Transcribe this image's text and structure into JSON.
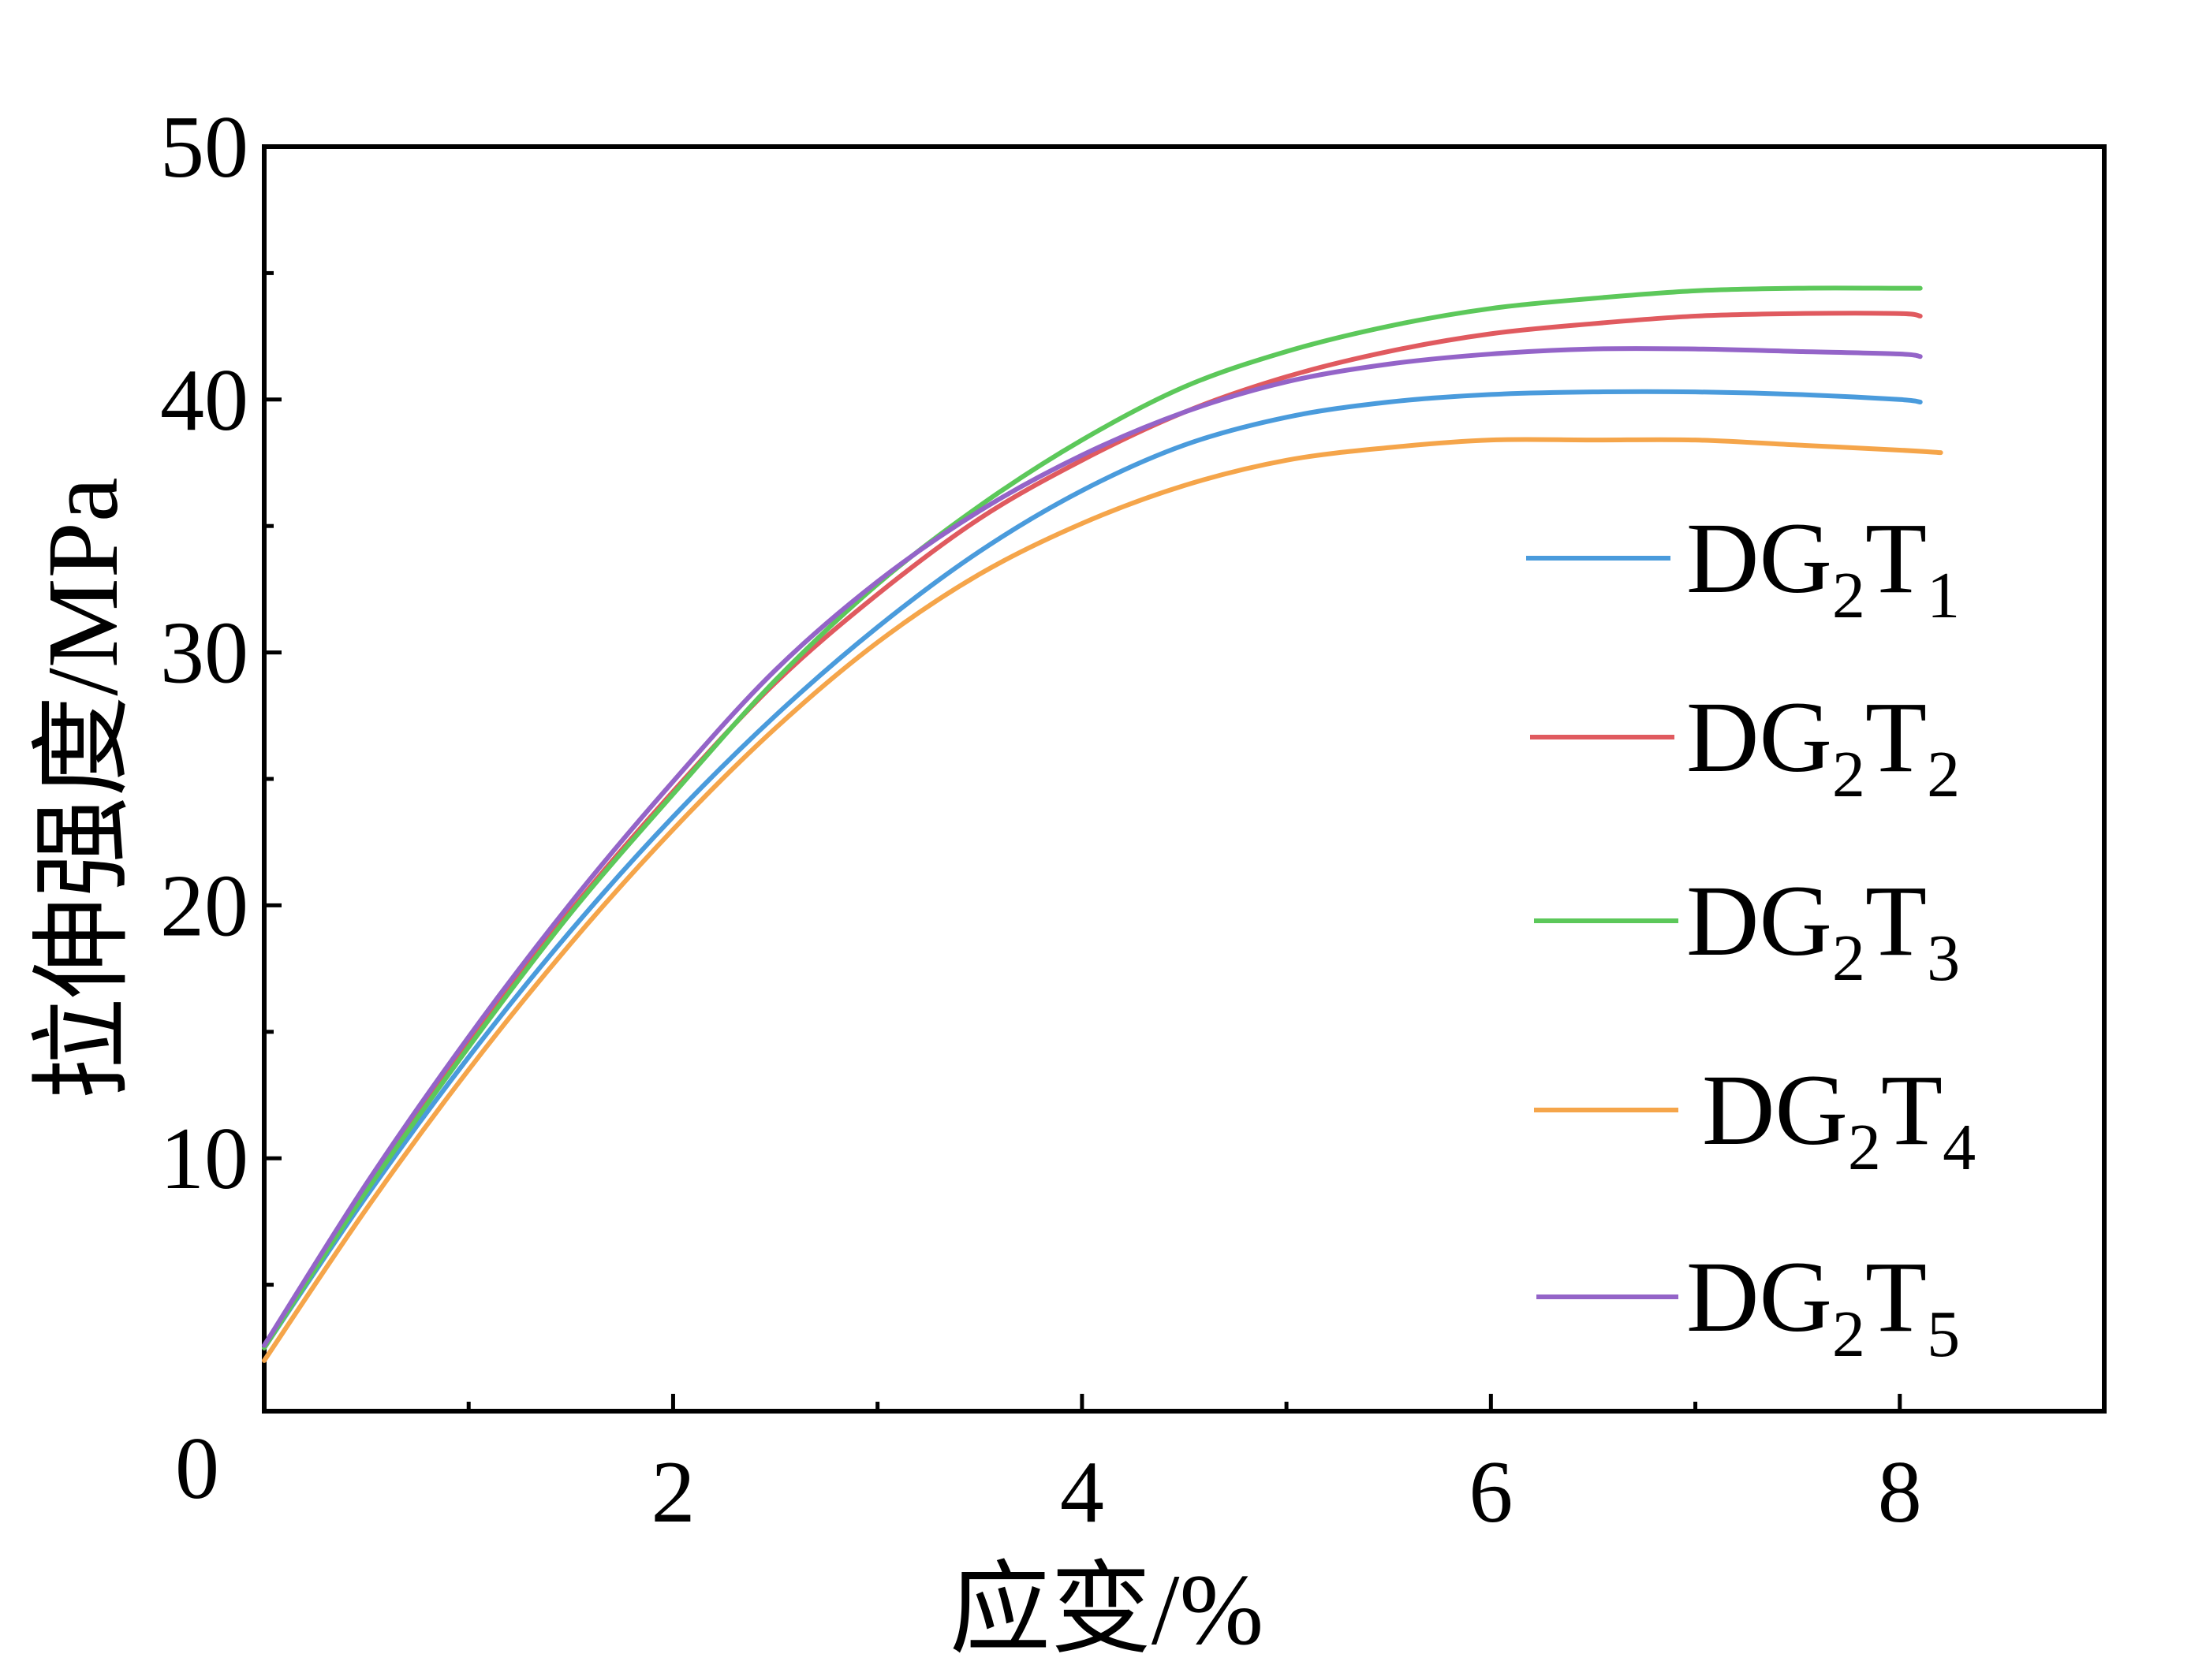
{
  "chart_data": {
    "type": "line",
    "title": "",
    "xlabel": "应变/%",
    "ylabel": "拉伸强度/MPa",
    "xlim": [
      0,
      9
    ],
    "ylim": [
      0,
      50
    ],
    "x_ticks": [
      2,
      4,
      6,
      8
    ],
    "x_tick_labels": [
      "2",
      "4",
      "6",
      "8"
    ],
    "y_ticks": [
      0,
      10,
      20,
      30,
      40,
      50
    ],
    "y_tick_labels": [
      "0",
      "10",
      "20",
      "30",
      "40",
      "50"
    ],
    "grid": false,
    "legend_position": "right",
    "series": [
      {
        "name": "DG2T1",
        "legend_main": "DG",
        "legend_sub1": "2",
        "legend_mid": "T",
        "legend_sub2": "1",
        "color": "#4a9bdc",
        "x": [
          0,
          0.5,
          1,
          1.5,
          2,
          2.5,
          3,
          3.5,
          4,
          4.5,
          5,
          5.5,
          6,
          6.5,
          7,
          7.5,
          8,
          8.1
        ],
        "y": [
          2.5,
          8.5,
          14.0,
          19.0,
          23.5,
          27.5,
          31.0,
          34.0,
          36.4,
          38.2,
          39.3,
          39.9,
          40.2,
          40.3,
          40.3,
          40.2,
          40.0,
          39.9
        ]
      },
      {
        "name": "DG2T2",
        "legend_main": "DG",
        "legend_sub1": "2",
        "legend_mid": "T",
        "legend_sub2": "2",
        "color": "#e05a5f",
        "x": [
          0,
          0.5,
          1,
          1.5,
          2,
          2.5,
          3,
          3.5,
          4,
          4.5,
          5,
          5.5,
          6,
          6.5,
          7,
          7.5,
          8,
          8.1
        ],
        "y": [
          2.5,
          8.8,
          14.5,
          19.8,
          24.5,
          28.8,
          32.3,
          35.3,
          37.6,
          39.5,
          40.9,
          41.9,
          42.6,
          43.0,
          43.3,
          43.4,
          43.4,
          43.3
        ]
      },
      {
        "name": "DG2T3",
        "legend_main": "DG",
        "legend_sub1": "2",
        "legend_mid": "T",
        "legend_sub2": "3",
        "color": "#5cc85a",
        "x": [
          0,
          0.5,
          1,
          1.5,
          2,
          2.5,
          3,
          3.5,
          4,
          4.5,
          5,
          5.5,
          6,
          6.5,
          7,
          7.5,
          8,
          8.1
        ],
        "y": [
          2.5,
          8.7,
          14.4,
          19.7,
          24.4,
          28.9,
          32.7,
          35.8,
          38.4,
          40.5,
          41.9,
          42.9,
          43.6,
          44.0,
          44.3,
          44.4,
          44.4,
          44.4
        ]
      },
      {
        "name": "DG2T4",
        "legend_main": "DG",
        "legend_sub1": "2",
        "legend_mid": "T",
        "legend_sub2": "4",
        "color": "#f5a54a",
        "x": [
          0,
          0.5,
          1,
          1.5,
          2,
          2.5,
          3,
          3.5,
          4,
          4.5,
          5,
          5.5,
          6,
          6.5,
          7,
          7.5,
          8,
          8.2
        ],
        "y": [
          2.0,
          8.0,
          13.5,
          18.5,
          23.0,
          27.0,
          30.4,
          33.1,
          35.1,
          36.6,
          37.6,
          38.1,
          38.4,
          38.4,
          38.4,
          38.2,
          38.0,
          37.9
        ]
      },
      {
        "name": "DG2T5",
        "legend_main": "DG",
        "legend_sub1": "2",
        "legend_mid": "T",
        "legend_sub2": "5",
        "color": "#9464c8",
        "x": [
          0,
          0.5,
          1,
          1.5,
          2,
          2.5,
          3,
          3.5,
          4,
          4.5,
          5,
          5.5,
          6,
          6.5,
          7,
          7.5,
          8,
          8.1
        ],
        "y": [
          2.6,
          9.0,
          14.8,
          20.1,
          24.9,
          29.3,
          32.8,
          35.6,
          37.8,
          39.5,
          40.7,
          41.4,
          41.8,
          42.0,
          42.0,
          41.9,
          41.8,
          41.7
        ]
      }
    ]
  }
}
